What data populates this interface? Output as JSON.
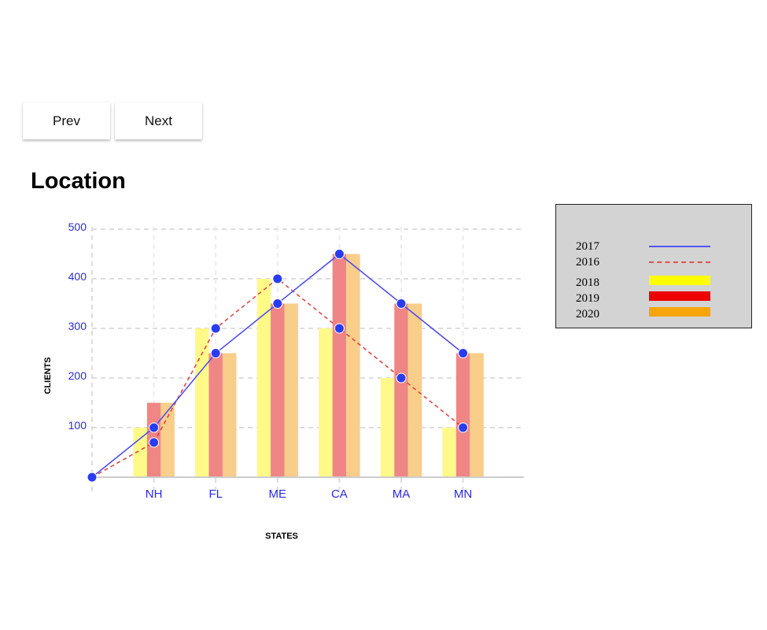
{
  "toolbar": {
    "prev_label": "Prev",
    "next_label": "Next"
  },
  "page_title": "Location",
  "colors": {
    "line_2017": "#3b3bf5",
    "line_2016": "#e03c3c",
    "bar_2018": "#fff98a",
    "bar_2019": "#f08585",
    "bar_2020": "#f9cd8a",
    "legend_2018": "#ffff00",
    "legend_2019": "#ee0000",
    "legend_2020": "#f5a50a",
    "axis_text": "#2a2ae0",
    "grid": "#dddddd",
    "legend_bg": "#d3d3d3"
  },
  "legend": [
    {
      "label": "2017",
      "kind": "line",
      "color": "#5555f0",
      "dashed": false
    },
    {
      "label": "2016",
      "kind": "line",
      "color": "#e05050",
      "dashed": true
    },
    {
      "label": "2018",
      "kind": "rect",
      "color": "#ffff00"
    },
    {
      "label": "2019",
      "kind": "rect",
      "color": "#ee0000"
    },
    {
      "label": "2020",
      "kind": "rect",
      "color": "#f5a50a"
    }
  ],
  "chart_data": {
    "type": "bar",
    "title": "",
    "xlabel": "STATES",
    "ylabel": "CLIENTS",
    "categories": [
      "NH",
      "FL",
      "ME",
      "CA",
      "MA",
      "MN"
    ],
    "yticks": [
      100,
      200,
      300,
      400,
      500
    ],
    "ylim": [
      0,
      500
    ],
    "grid": true,
    "legend_position": "right",
    "bar_series": [
      {
        "name": "2018",
        "values": [
          100,
          300,
          400,
          300,
          200,
          100
        ]
      },
      {
        "name": "2019",
        "values": [
          150,
          250,
          350,
          450,
          350,
          250
        ]
      },
      {
        "name": "2020",
        "values": [
          150,
          250,
          350,
          450,
          350,
          250
        ]
      }
    ],
    "line_series": [
      {
        "name": "2017",
        "x": [
          "",
          "NH",
          "FL",
          "ME",
          "CA",
          "MA",
          "MN"
        ],
        "values": [
          0,
          100,
          250,
          350,
          450,
          350,
          250
        ]
      },
      {
        "name": "2016",
        "x": [
          "",
          "NH",
          "FL",
          "ME",
          "CA",
          "MA",
          "MN"
        ],
        "values": [
          0,
          70,
          300,
          400,
          300,
          200,
          100
        ]
      }
    ]
  }
}
